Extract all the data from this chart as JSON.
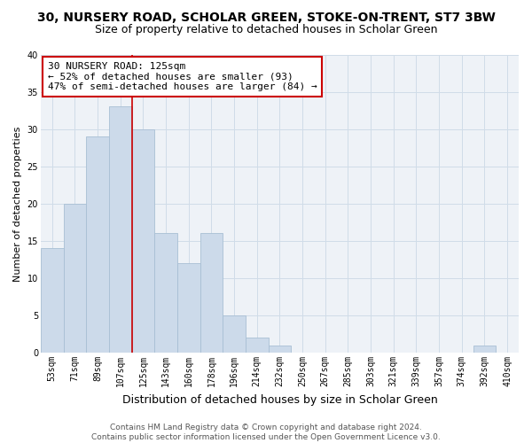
{
  "title": "30, NURSERY ROAD, SCHOLAR GREEN, STOKE-ON-TRENT, ST7 3BW",
  "subtitle": "Size of property relative to detached houses in Scholar Green",
  "xlabel": "Distribution of detached houses by size in Scholar Green",
  "ylabel": "Number of detached properties",
  "bin_labels": [
    "53sqm",
    "71sqm",
    "89sqm",
    "107sqm",
    "125sqm",
    "143sqm",
    "160sqm",
    "178sqm",
    "196sqm",
    "214sqm",
    "232sqm",
    "250sqm",
    "267sqm",
    "285sqm",
    "303sqm",
    "321sqm",
    "339sqm",
    "357sqm",
    "374sqm",
    "392sqm",
    "410sqm"
  ],
  "bar_heights": [
    14,
    20,
    29,
    33,
    30,
    16,
    12,
    16,
    5,
    2,
    1,
    0,
    0,
    0,
    0,
    0,
    0,
    0,
    0,
    1,
    0
  ],
  "bar_color": "#ccdaea",
  "bar_edge_color": "#a8bfd4",
  "grid_color": "#d0dce8",
  "vline_x_index": 4,
  "vline_color": "#cc0000",
  "annotation_line1": "30 NURSERY ROAD: 125sqm",
  "annotation_line2": "← 52% of detached houses are smaller (93)",
  "annotation_line3": "47% of semi-detached houses are larger (84) →",
  "annotation_box_color": "#ffffff",
  "annotation_box_edge": "#cc0000",
  "ylim": [
    0,
    40
  ],
  "yticks": [
    0,
    5,
    10,
    15,
    20,
    25,
    30,
    35,
    40
  ],
  "footer": "Contains HM Land Registry data © Crown copyright and database right 2024.\nContains public sector information licensed under the Open Government Licence v3.0.",
  "title_fontsize": 10,
  "subtitle_fontsize": 9,
  "xlabel_fontsize": 9,
  "ylabel_fontsize": 8,
  "tick_fontsize": 7,
  "annotation_fontsize": 8,
  "footer_fontsize": 6.5
}
